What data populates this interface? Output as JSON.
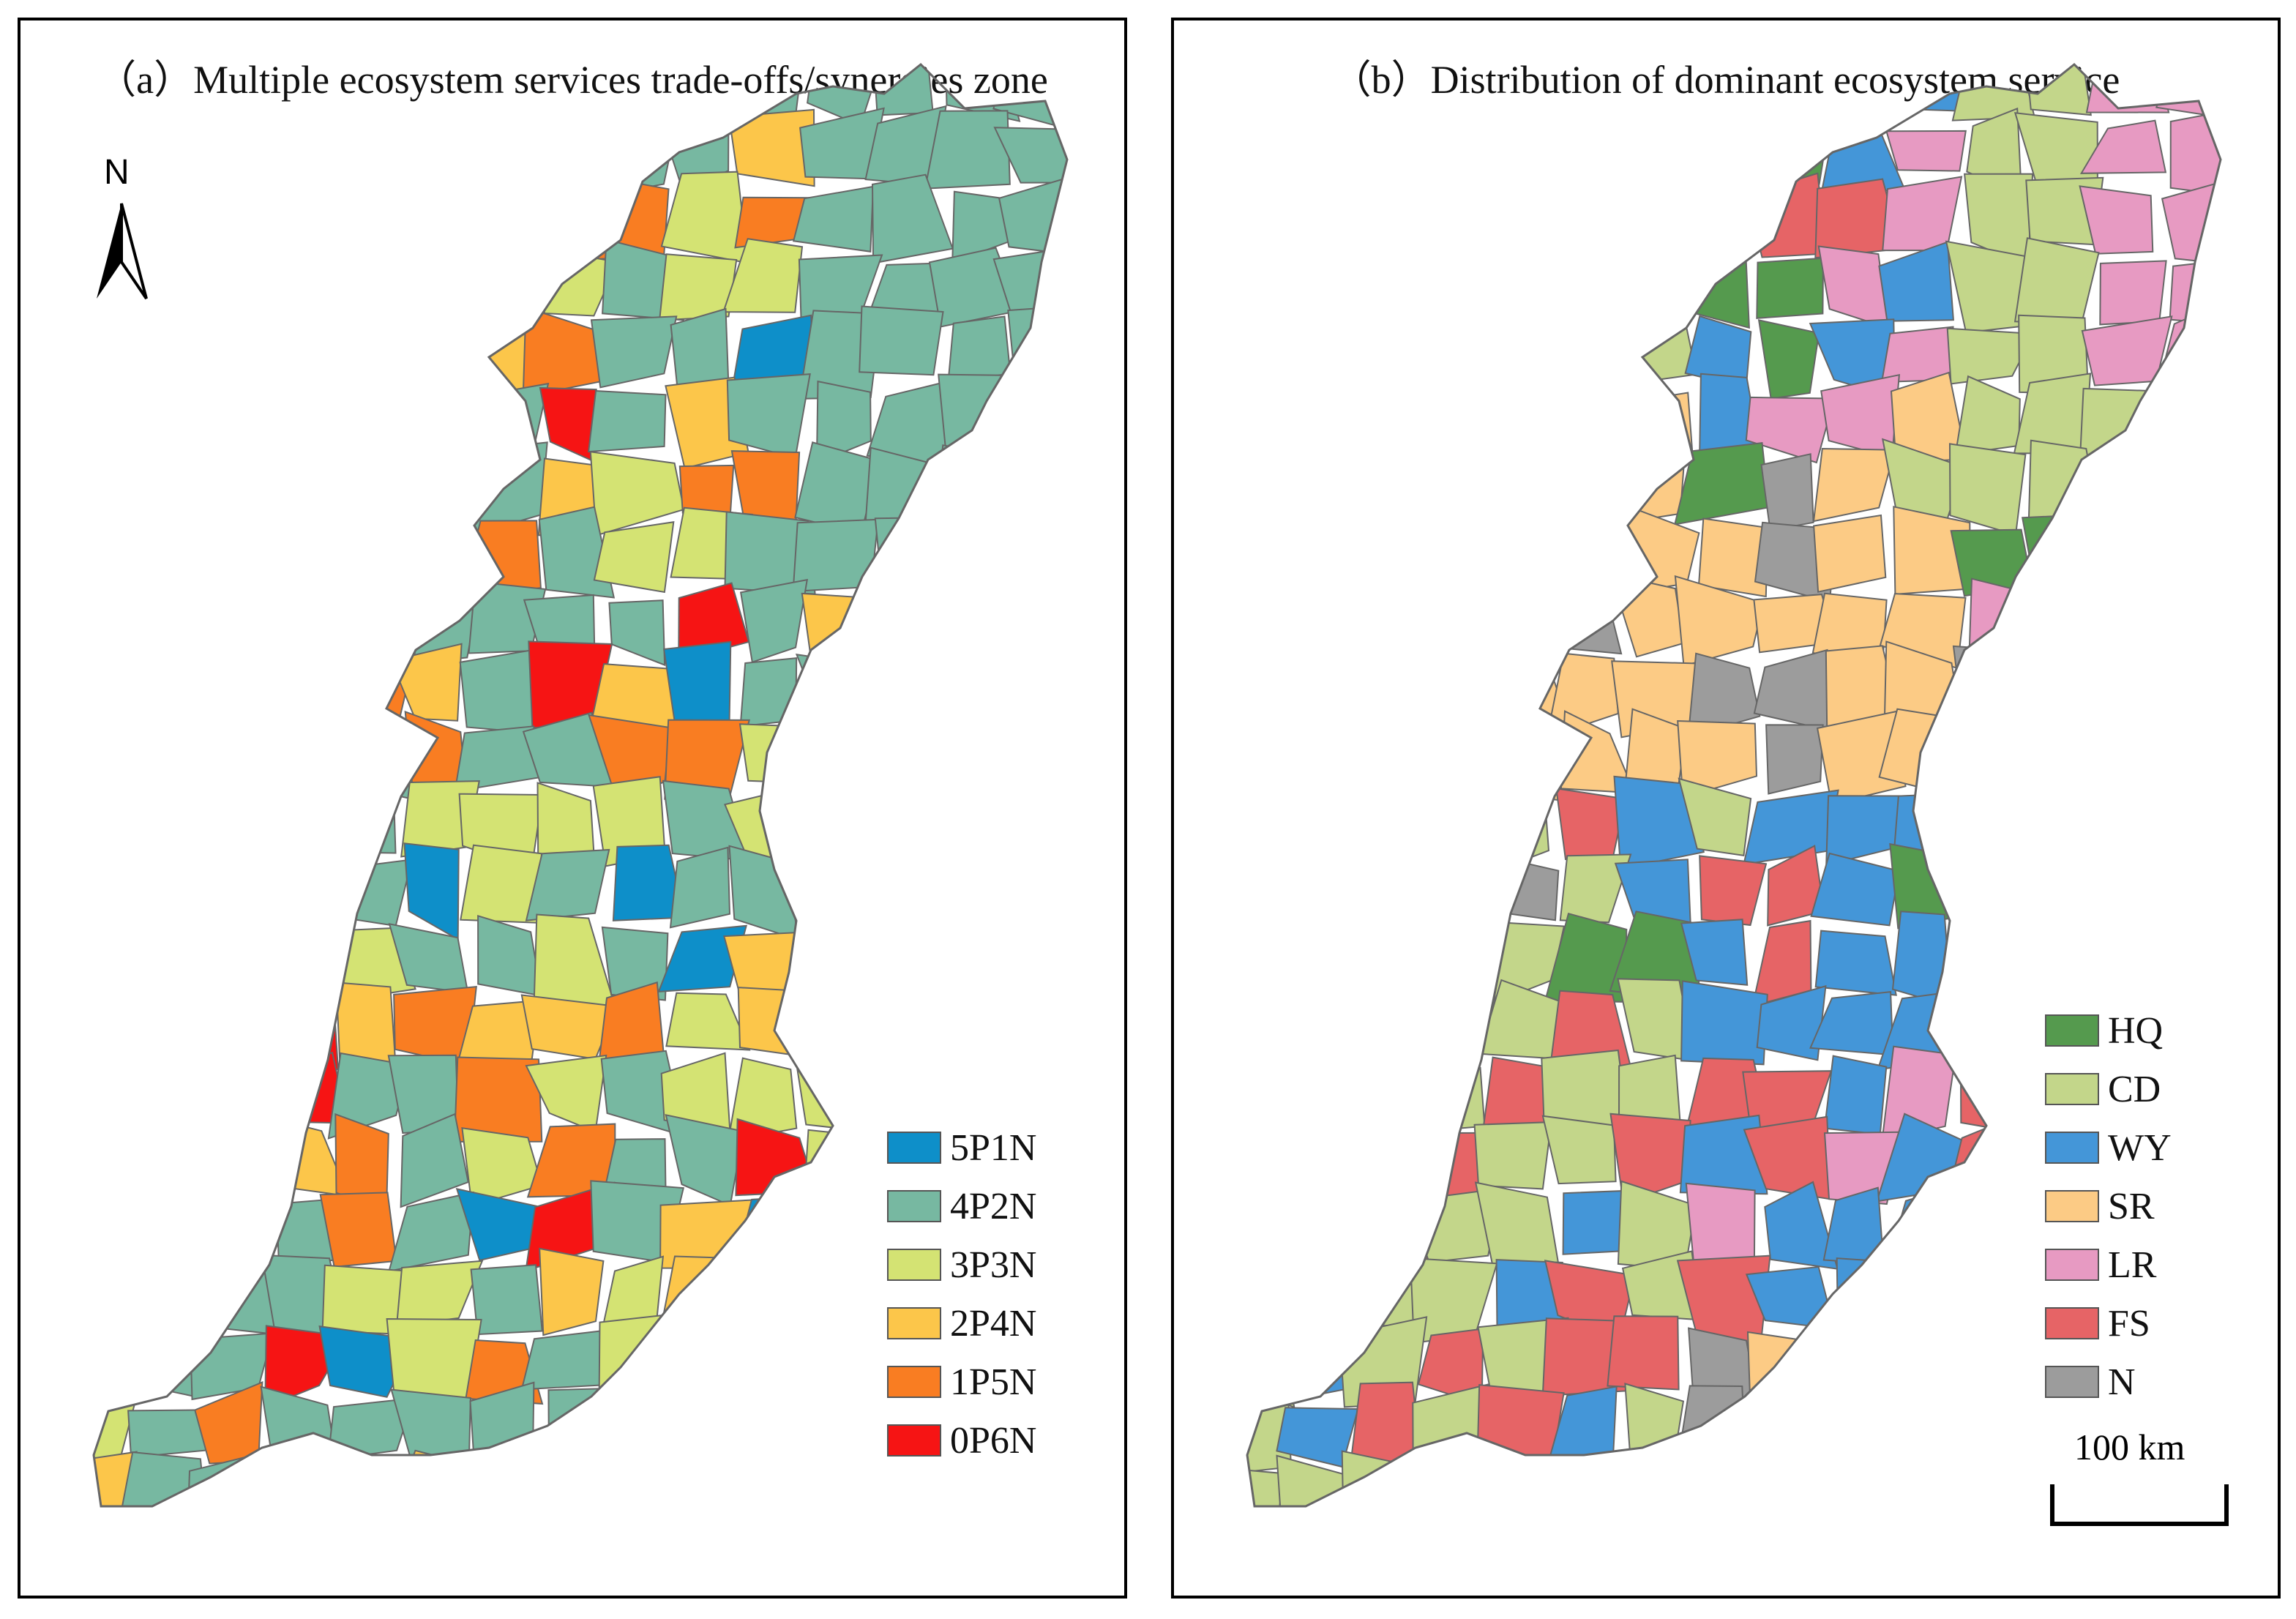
{
  "panel_a": {
    "title": "（a）Multiple ecosystem services trade-offs/synergies zone",
    "north_label": "N",
    "legend": [
      {
        "label": "5P1N",
        "color": "#0e8fc9"
      },
      {
        "label": "4P2N",
        "color": "#77b8a1"
      },
      {
        "label": "3P3N",
        "color": "#d4e373"
      },
      {
        "label": "2P4N",
        "color": "#fcc64a"
      },
      {
        "label": "1P5N",
        "color": "#f97d22"
      },
      {
        "label": "0P6N",
        "color": "#f61414"
      }
    ]
  },
  "panel_b": {
    "title": "（b）Distribution of dominant ecosystem service",
    "legend": [
      {
        "label": "HQ",
        "color": "#559a4e"
      },
      {
        "label": "CD",
        "color": "#c3d68a"
      },
      {
        "label": "WY",
        "color": "#4496d8"
      },
      {
        "label": "SR",
        "color": "#fccb85"
      },
      {
        "label": "LR",
        "color": "#e79ac2"
      },
      {
        "label": "FS",
        "color": "#e66466"
      },
      {
        "label": "N",
        "color": "#9c9c9c"
      }
    ],
    "scale_label": "100 km"
  }
}
